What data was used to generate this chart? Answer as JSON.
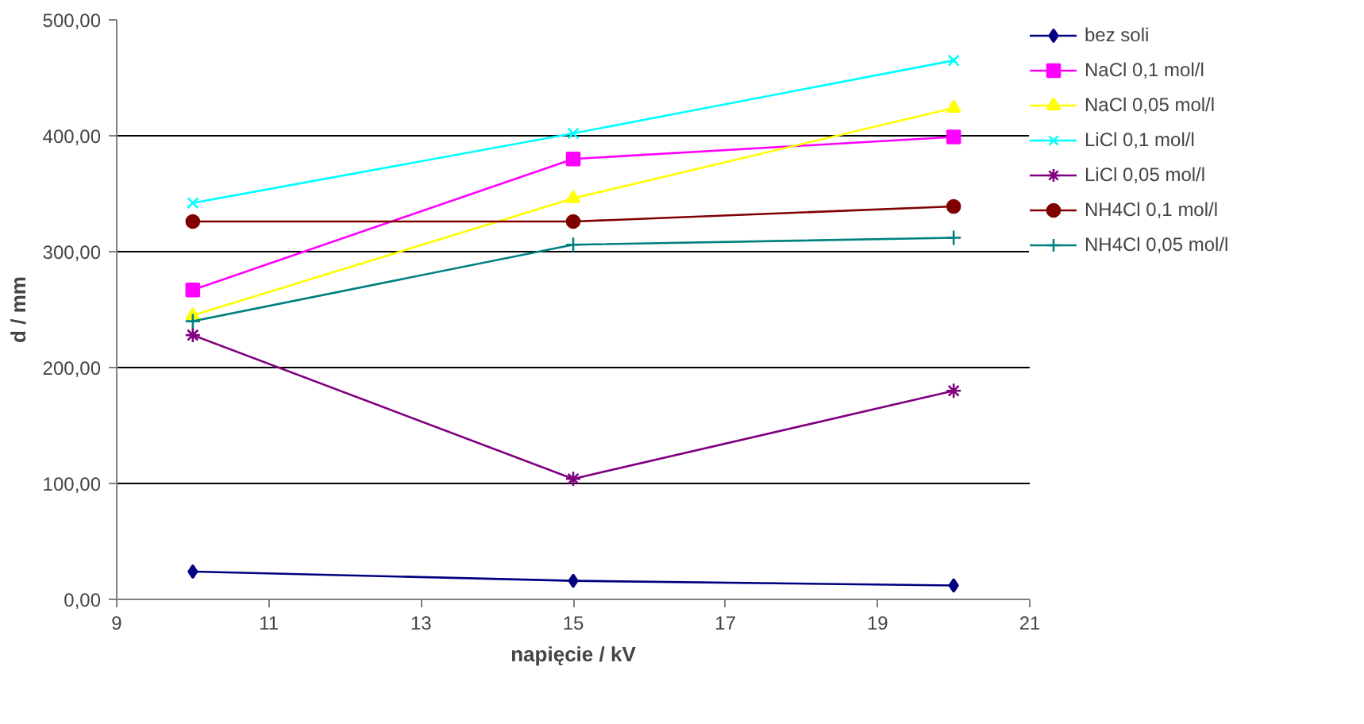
{
  "chart_data": {
    "type": "line",
    "xlabel": "napięcie / kV",
    "ylabel": "d / mm",
    "x": [
      10,
      15,
      20
    ],
    "series": [
      {
        "name": "bez soli",
        "color": "#000080",
        "marker": "diamond",
        "values": [
          24,
          16,
          12
        ]
      },
      {
        "name": "NaCl 0,1 mol/l",
        "color": "#ff00ff",
        "marker": "square",
        "values": [
          267,
          380,
          399
        ]
      },
      {
        "name": "NaCl 0,05 mol/l",
        "color": "#ffff00",
        "marker": "triangle",
        "values": [
          245,
          346,
          424
        ]
      },
      {
        "name": "LiCl 0,1 mol/l",
        "color": "#00ffff",
        "marker": "x",
        "values": [
          342,
          402,
          465
        ]
      },
      {
        "name": "LiCl 0,05 mol/l",
        "color": "#800080",
        "marker": "cross",
        "values": [
          228,
          104,
          180
        ]
      },
      {
        "name": "NH4Cl 0,1 mol/l",
        "color": "#800000",
        "marker": "circle",
        "values": [
          326,
          326,
          339
        ]
      },
      {
        "name": "NH4Cl 0,05 mol/l",
        "color": "#008080",
        "marker": "cross",
        "values": [
          240,
          306,
          312
        ]
      }
    ],
    "xlim": [
      9,
      21
    ],
    "xticks": [
      9,
      11,
      13,
      15,
      17,
      19,
      21
    ],
    "ylim": [
      0,
      500
    ],
    "yticks": [
      {
        "value": 0,
        "label": "0,00"
      },
      {
        "value": 100,
        "label": "100,00"
      },
      {
        "value": 200,
        "label": "200,00"
      },
      {
        "value": 300,
        "label": "300,00"
      },
      {
        "value": 400,
        "label": "400,00"
      },
      {
        "value": 500,
        "label": "500,00"
      }
    ],
    "grid": "y",
    "legend": "right",
    "line_style": "solid"
  }
}
